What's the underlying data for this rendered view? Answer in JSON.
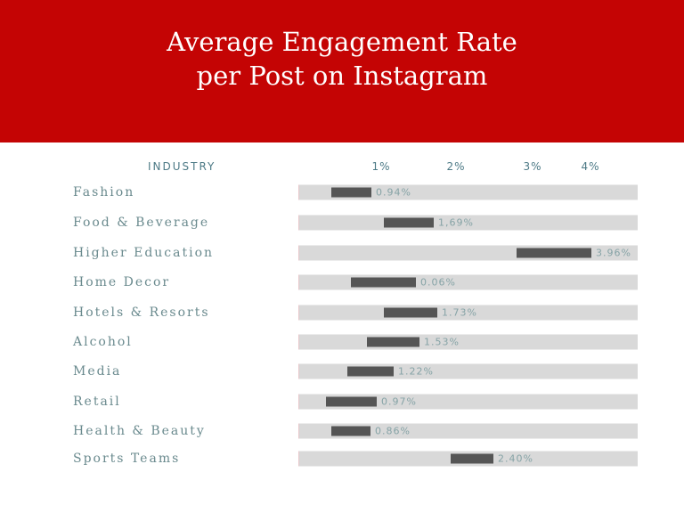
{
  "chart_data": {
    "type": "bar",
    "title_lines": [
      "Average Engagement Rate",
      "per Post on Instagram"
    ],
    "category_header": "INDUSTRY",
    "x_ticks": [
      "1%",
      "2%",
      "3%",
      "4%"
    ],
    "categories": [
      "Fashion",
      "Food & Beverage",
      "Higher Education",
      "Home Decor",
      "Hotels & Resorts",
      "Alcohol",
      "Media",
      "Retail",
      "Health & Beauty",
      "Sports Teams"
    ],
    "values": [
      0.94,
      1.69,
      3.96,
      0.06,
      1.73,
      1.53,
      1.22,
      0.97,
      0.86,
      2.4
    ],
    "value_labels": [
      "0.94%",
      "1,69%",
      "3.96%",
      "0.06%",
      "1.73%",
      "1.53%",
      "1.22%",
      "0.97%",
      "0.86%",
      "2.40%"
    ],
    "colors": {
      "header": "#c40404",
      "bar": "#555555",
      "track": "#d9d9d9"
    }
  }
}
